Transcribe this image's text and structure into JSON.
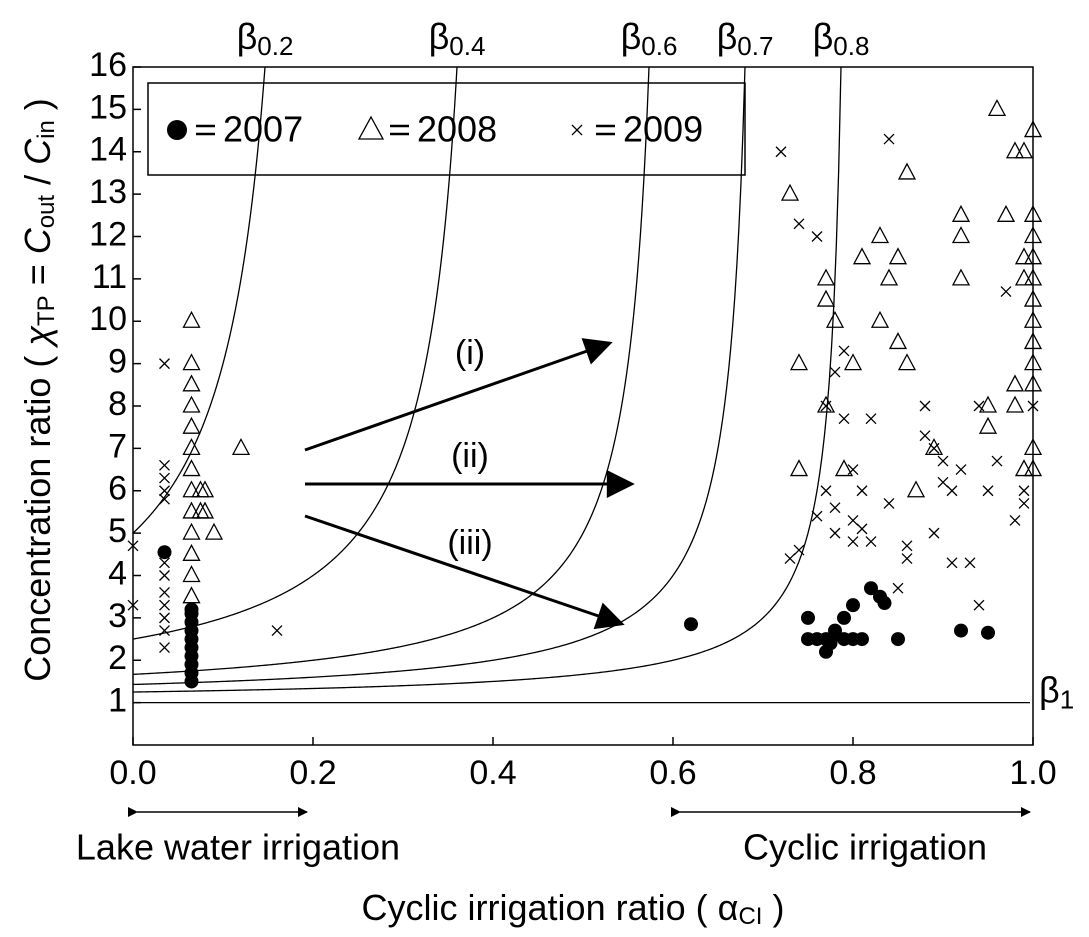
{
  "chart_data": {
    "type": "scatter",
    "ylabel": {
      "text": "Concentration ratio ( ",
      "chi": "χ",
      "chi_sub": "TP",
      "eq": " = ",
      "c1": "C",
      "c1_sub": "out",
      "slash": " / ",
      "c2": "C",
      "c2_sub": "in",
      "close": " )"
    },
    "xlabel": {
      "text": "Cyclic irrigation ratio ( ",
      "alpha": "α",
      "alpha_sub": "CI",
      "close": " )"
    },
    "regions": [
      "Lake water irrigation",
      "Cyclic irrigation"
    ],
    "annotations": [
      "(i)",
      "(ii)",
      "(iii)"
    ],
    "curve_symbol": "β",
    "curves": [
      {
        "beta": 0.2
      },
      {
        "beta": 0.4
      },
      {
        "beta": 0.6
      },
      {
        "beta": 0.7
      },
      {
        "beta": 0.8
      },
      {
        "beta": 1
      }
    ],
    "xlim": [
      0,
      1
    ],
    "xticks": [
      {
        "value": 0,
        "label": "0.0"
      },
      0.2,
      0.4,
      0.6,
      0.8,
      {
        "value": 1,
        "label": "1.0"
      }
    ],
    "ylim": [
      0,
      16
    ],
    "yticks": [
      1,
      2,
      3,
      4,
      5,
      6,
      7,
      8,
      9,
      10,
      11,
      12,
      13,
      14,
      15,
      16
    ],
    "grid": false,
    "series": [
      {
        "name": "2007",
        "marker": "circle",
        "color": "#000000",
        "x": [
          0.035,
          0.065,
          0.065,
          0.065,
          0.065,
          0.065,
          0.065,
          0.065,
          0.065,
          0.065,
          0.065,
          0.62,
          0.75,
          0.75,
          0.76,
          0.77,
          0.77,
          0.775,
          0.78,
          0.78,
          0.79,
          0.79,
          0.8,
          0.8,
          0.81,
          0.82,
          0.83,
          0.835,
          0.85,
          0.92,
          0.95
        ],
        "values": [
          4.55,
          1.5,
          1.7,
          1.9,
          2.1,
          2.3,
          2.5,
          2.7,
          2.9,
          3.1,
          3.2,
          2.85,
          3.0,
          2.5,
          2.5,
          2.2,
          2.5,
          2.4,
          2.6,
          2.7,
          2.5,
          3.0,
          3.3,
          2.5,
          2.5,
          3.7,
          3.5,
          3.35,
          2.5,
          2.7,
          2.65
        ]
      },
      {
        "name": "2008",
        "marker": "triangle",
        "color": "#000000",
        "x": [
          0.065,
          0.065,
          0.065,
          0.065,
          0.065,
          0.065,
          0.065,
          0.065,
          0.065,
          0.065,
          0.065,
          0.065,
          0.065,
          0.075,
          0.075,
          0.08,
          0.08,
          0.09,
          0.12,
          0.73,
          0.74,
          0.74,
          0.77,
          0.77,
          0.77,
          0.78,
          0.79,
          0.8,
          0.81,
          0.83,
          0.83,
          0.84,
          0.85,
          0.85,
          0.86,
          0.86,
          0.87,
          0.89,
          0.92,
          0.92,
          0.92,
          0.95,
          0.95,
          0.96,
          0.97,
          0.98,
          0.98,
          0.98,
          0.99,
          0.99,
          0.99,
          1.0,
          1.0,
          1.0,
          1.0,
          1.0,
          1.0,
          1.0,
          1.0,
          1.0,
          1.0,
          1.0,
          1.0,
          0.99
        ],
        "values": [
          10,
          9,
          8.5,
          8,
          7.5,
          7,
          6.5,
          6,
          5.5,
          5,
          4.5,
          4,
          3.5,
          6,
          5.5,
          6,
          5.5,
          5,
          7,
          13,
          9,
          6.5,
          11,
          10.5,
          8,
          10,
          6.5,
          9,
          11.5,
          12,
          10,
          11,
          9.5,
          11.5,
          13.5,
          9,
          6,
          7,
          12.5,
          12,
          11,
          8,
          7.5,
          15,
          12.5,
          14,
          8.5,
          8,
          14,
          11.5,
          11,
          14.5,
          12.5,
          12,
          11.5,
          11,
          10.5,
          10,
          9.5,
          9,
          8.5,
          7,
          6.5,
          6.5
        ]
      },
      {
        "name": "2009",
        "marker": "cross",
        "color": "#000000",
        "x": [
          0.0,
          0.0,
          0.035,
          0.035,
          0.035,
          0.035,
          0.035,
          0.035,
          0.035,
          0.035,
          0.035,
          0.035,
          0.035,
          0.035,
          0.16,
          0.72,
          0.73,
          0.74,
          0.74,
          0.76,
          0.76,
          0.77,
          0.77,
          0.78,
          0.78,
          0.78,
          0.79,
          0.79,
          0.8,
          0.8,
          0.8,
          0.81,
          0.81,
          0.82,
          0.82,
          0.84,
          0.84,
          0.85,
          0.86,
          0.86,
          0.88,
          0.88,
          0.89,
          0.89,
          0.9,
          0.9,
          0.91,
          0.91,
          0.93,
          0.94,
          0.94,
          0.95,
          0.96,
          0.97,
          0.98,
          0.99,
          0.99,
          1.0,
          0.92
        ],
        "values": [
          4.7,
          3.3,
          9,
          6.6,
          6.3,
          6,
          5.8,
          4,
          3.6,
          3.3,
          3,
          2.7,
          2.3,
          4.3,
          2.7,
          14,
          4.4,
          12.3,
          4.6,
          12,
          5.4,
          8,
          6,
          8.8,
          5,
          5.6,
          9.3,
          7.7,
          6.5,
          5.3,
          4.8,
          6,
          5.1,
          7.7,
          4.8,
          14.3,
          5.7,
          3.7,
          4.7,
          4.4,
          8,
          7.3,
          5,
          7,
          6.7,
          6.2,
          6,
          4.3,
          4.3,
          8,
          3.3,
          6,
          6.7,
          10.7,
          5.3,
          5.7,
          6,
          8,
          6.5
        ]
      }
    ]
  }
}
